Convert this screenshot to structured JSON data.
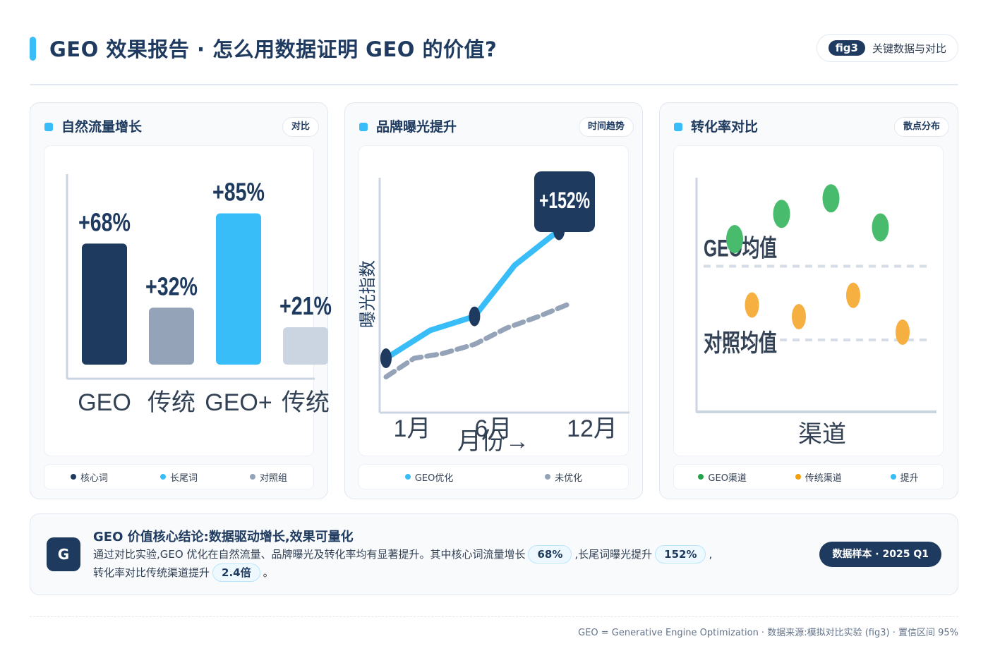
{
  "header": {
    "title": "GEO 效果报告 · 怎么用数据证明 GEO 的价值?",
    "fig_badge": "fig3",
    "fig_label": "关键数据与对比"
  },
  "colors": {
    "navy": "#1e3a5f",
    "slate": "#94a3b8",
    "sky": "#38bdf8",
    "light_slate": "#cbd5e1",
    "green": "#48bb6c",
    "orange": "#f6b042",
    "orange_dot": "#f59e0b",
    "green_dot": "#22a34a"
  },
  "chart_data": [
    {
      "type": "bar",
      "title": "自然流量增长",
      "tag": "对比",
      "categories": [
        "GEO",
        "传统",
        "GEO+",
        "传统"
      ],
      "values": [
        68,
        32,
        85,
        21
      ],
      "data_labels": [
        "+68%",
        "+32%",
        "+85%",
        "+21%"
      ],
      "ylim": [
        0,
        100
      ],
      "legend": [
        "核心词",
        "长尾词",
        "对照组"
      ]
    },
    {
      "type": "line",
      "title": "品牌曝光提升",
      "tag": "时间趋势",
      "ylabel": "曝光指数",
      "x_ticks": [
        "1月",
        "6月",
        "12月"
      ],
      "x_label_overlap": "月份→",
      "series": [
        {
          "name": "GEO优化",
          "x": [
            1,
            2.1,
            3.2,
            4.2,
            5.3
          ],
          "values": [
            30,
            42,
            48,
            70,
            85
          ]
        },
        {
          "name": "未优化",
          "x": [
            1,
            1.7,
            2.4,
            3.2,
            4,
            4.8,
            5.5
          ],
          "values": [
            22,
            30,
            32,
            36,
            43,
            48,
            53
          ]
        }
      ],
      "annotation": "+152%",
      "legend": [
        "GEO优化",
        "未优化"
      ]
    },
    {
      "type": "scatter",
      "title": "转化率对比",
      "tag": "散点分布",
      "xlabel": "渠道",
      "series": [
        {
          "name": "GEO渠道",
          "points": [
            [
              1.6,
              72
            ],
            [
              3.5,
              85
            ],
            [
              5.5,
              93
            ],
            [
              7.5,
              78
            ]
          ]
        },
        {
          "name": "传统渠道",
          "points": [
            [
              2.3,
              38
            ],
            [
              4.2,
              32
            ],
            [
              6.4,
              43
            ],
            [
              8.4,
              24
            ]
          ]
        }
      ],
      "reference_lines": [
        {
          "label": "GEO均值",
          "value": 58
        },
        {
          "label": "对照均值",
          "value": 20
        }
      ],
      "legend": [
        "GEO渠道",
        "传统渠道",
        "提升"
      ]
    }
  ],
  "summary": {
    "avatar": "G",
    "title": "GEO 价值核心结论:数据驱动增长,效果可量化",
    "text_1": "通过对比实验,GEO 优化在自然流量、品牌曝光及转化率均有显著提升。其中核心词流量增长",
    "hl_1": "68%",
    "text_2": ",长尾词曝光提升",
    "hl_2": "152%",
    "text_3": ",",
    "text_4": "转化率对比传统渠道提升",
    "hl_3": "2.4倍",
    "text_5": "。",
    "sample": "数据样本 · 2025 Q1"
  },
  "footer": "GEO = Generative Engine Optimization · 数据来源:模拟对比实验 (fig3) · 置信区间 95%"
}
